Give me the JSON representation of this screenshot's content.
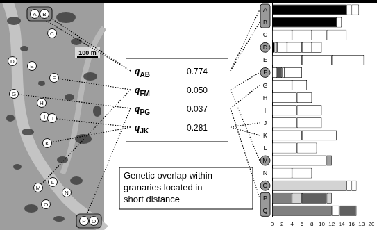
{
  "map": {
    "scale_label": "100 m",
    "sites": [
      "A",
      "B",
      "C",
      "D",
      "E",
      "F",
      "G",
      "H",
      "I",
      "J",
      "K",
      "L",
      "M",
      "N",
      "O",
      "P",
      "Q"
    ]
  },
  "table": {
    "rows": [
      {
        "symbol": "q",
        "subscript": "AB",
        "value": "0.774"
      },
      {
        "symbol": "q",
        "subscript": "FM",
        "value": "0.050"
      },
      {
        "symbol": "q",
        "subscript": "PG",
        "value": "0.037"
      },
      {
        "symbol": "q",
        "subscript": "JK",
        "value": "0.281"
      }
    ]
  },
  "note": [
    "Genetic overlap within",
    "granaries located in",
    "short distance"
  ],
  "highlight": {
    "circled": [
      "D",
      "F",
      "M",
      "O"
    ],
    "boxed": [
      [
        "A",
        "B"
      ],
      [
        "P",
        "Q"
      ]
    ]
  },
  "chart_data": {
    "type": "bar",
    "orientation": "horizontal",
    "stacked": true,
    "grid": false,
    "categories": [
      "A",
      "B",
      "C",
      "D",
      "E",
      "F",
      "G",
      "H",
      "I",
      "J",
      "K",
      "L",
      "M",
      "N",
      "O",
      "P",
      "Q"
    ],
    "xlim": [
      0,
      20
    ],
    "xticks": [
      0,
      2,
      4,
      6,
      8,
      10,
      12,
      14,
      16,
      18,
      20
    ],
    "series": [
      {
        "values": [
          15,
          13,
          4,
          0.5,
          6,
          1,
          4,
          5,
          5,
          5,
          6,
          5,
          11,
          4,
          15,
          4,
          12
        ],
        "colors": [
          "#000000",
          "#000000",
          "#ffffff",
          "#000000",
          "#ffffff",
          "#ffffff",
          "#ffffff",
          "#ffffff",
          "#ffffff",
          "#ffffff",
          "#ffffff",
          "#ffffff",
          "#ffffff",
          "#ffffff",
          "#d3d3d3",
          "#808080",
          "#808080"
        ]
      },
      {
        "values": [
          1,
          1,
          4,
          0.5,
          6,
          1,
          3,
          3,
          5,
          5,
          7,
          4,
          1,
          4,
          1,
          2,
          1.5
        ],
        "colors": [
          "#ffffff",
          "#ffffff",
          "#ffffff",
          "#ffffff",
          "#ffffff",
          "#555555",
          "#ffffff",
          "#ffffff",
          "#ffffff",
          "#ffffff",
          "#ffffff",
          "#ffffff",
          "#a0a0a0",
          "#ffffff",
          "#ffffff",
          "#d3d3d3",
          "#ffffff"
        ]
      },
      {
        "values": [
          1.5,
          null,
          3,
          2,
          6.5,
          0.5,
          null,
          null,
          null,
          null,
          null,
          null,
          null,
          null,
          1,
          5,
          3.5
        ],
        "colors": [
          "#ffffff",
          null,
          "#ffffff",
          "#ffffff",
          "#ffffff",
          "#ffffff",
          null,
          null,
          null,
          null,
          null,
          null,
          null,
          null,
          "#ffffff",
          "#606060",
          "#606060"
        ]
      },
      {
        "values": [
          null,
          null,
          4,
          3,
          null,
          3.5,
          null,
          null,
          null,
          null,
          null,
          null,
          null,
          null,
          null,
          1,
          null
        ],
        "colors": [
          null,
          null,
          "#ffffff",
          "#ffffff",
          null,
          "#ffffff",
          null,
          null,
          null,
          null,
          null,
          null,
          null,
          null,
          null,
          "#d3d3d3",
          null
        ]
      },
      {
        "values": [
          null,
          null,
          null,
          2,
          null,
          null,
          null,
          null,
          null,
          null,
          null,
          null,
          null,
          null,
          null,
          null,
          null
        ],
        "colors": [
          null,
          null,
          null,
          "#ffffff",
          null,
          null,
          null,
          null,
          null,
          null,
          null,
          null,
          null,
          null,
          null,
          null,
          null
        ]
      },
      {
        "values": [
          null,
          null,
          null,
          2,
          null,
          null,
          null,
          null,
          null,
          null,
          null,
          null,
          null,
          null,
          null,
          null,
          null
        ],
        "colors": [
          null,
          null,
          null,
          "#ffffff",
          null,
          null,
          null,
          null,
          null,
          null,
          null,
          null,
          null,
          null,
          null,
          null,
          null
        ]
      }
    ]
  }
}
